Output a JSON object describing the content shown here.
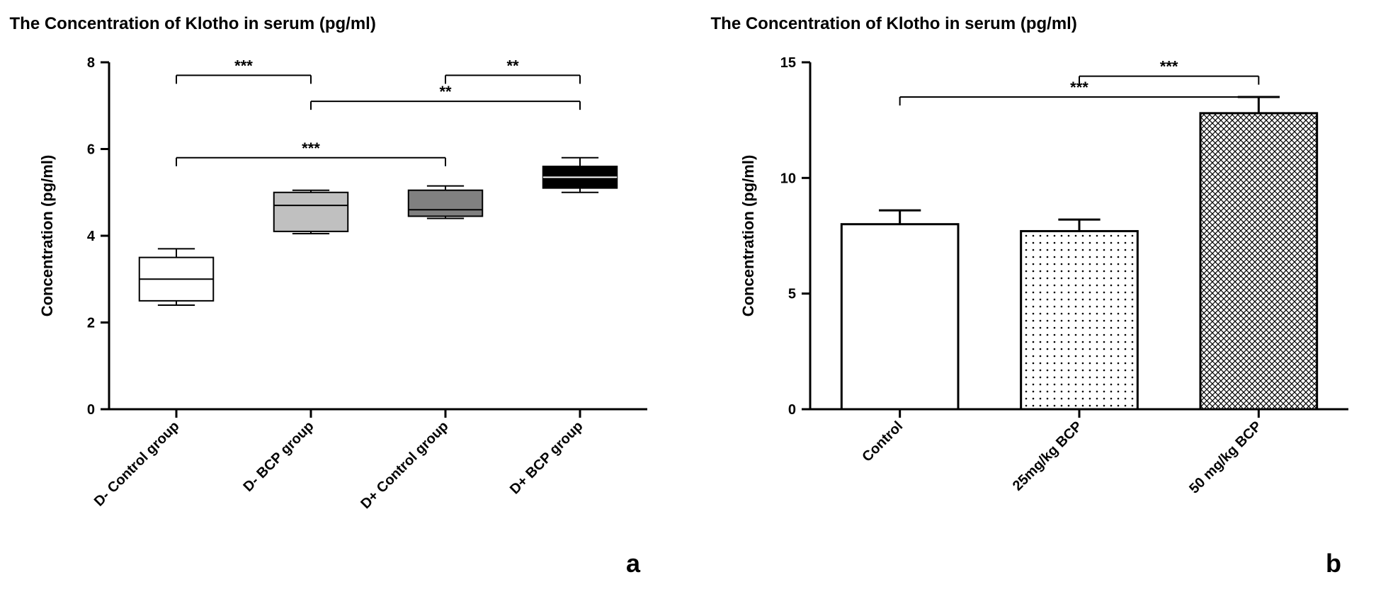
{
  "panel_a": {
    "type": "boxplot",
    "title": "The Concentration of Klotho in serum (pg/ml)",
    "ylabel": "Concentration (pg/ml)",
    "ylim": [
      0,
      8
    ],
    "ytick_step": 2,
    "yticks": [
      0,
      2,
      4,
      6,
      8
    ],
    "categories": [
      "D- Control group",
      "D- BCP group",
      "D+ Control group",
      "D+ BCP group"
    ],
    "boxes": [
      {
        "min": 2.4,
        "q1": 2.5,
        "median": 3.0,
        "q3": 3.5,
        "max": 3.7,
        "fill": "#ffffff"
      },
      {
        "min": 4.05,
        "q1": 4.1,
        "median": 4.7,
        "q3": 5.0,
        "max": 5.05,
        "fill": "#c0c0c0"
      },
      {
        "min": 4.4,
        "q1": 4.45,
        "median": 4.6,
        "q3": 5.05,
        "max": 5.15,
        "fill": "#808080"
      },
      {
        "min": 5.0,
        "q1": 5.1,
        "median": 5.35,
        "q3": 5.6,
        "max": 5.8,
        "fill": "#000000"
      }
    ],
    "significance": [
      {
        "from": 0,
        "to": 1,
        "y": 7.7,
        "label": "***"
      },
      {
        "from": 0,
        "to": 2,
        "y": 5.8,
        "label": "***"
      },
      {
        "from": 1,
        "to": 3,
        "y": 7.1,
        "label": "**"
      },
      {
        "from": 2,
        "to": 3,
        "y": 7.7,
        "label": "**"
      }
    ],
    "panel_label": "a",
    "title_fontsize": 24,
    "label_fontsize": 22,
    "tick_fontsize": 20,
    "sig_fontsize": 22,
    "panel_label_fontsize": 36,
    "axis_color": "#000000",
    "axis_width": 3,
    "box_border_width": 2,
    "background_color": "#ffffff"
  },
  "panel_b": {
    "type": "bar",
    "title": "The Concentration of Klotho in serum (pg/ml)",
    "ylabel": "Concentration (pg/ml)",
    "ylim": [
      0,
      15
    ],
    "ytick_step": 5,
    "yticks": [
      0,
      5,
      10,
      15
    ],
    "categories": [
      "Control",
      "25mg/kg BCP",
      "50 mg/kg BCP"
    ],
    "bars": [
      {
        "value": 8.0,
        "error": 0.6,
        "fill": "#ffffff",
        "pattern": "none"
      },
      {
        "value": 7.7,
        "error": 0.5,
        "fill": "#ffffff",
        "pattern": "dots"
      },
      {
        "value": 12.8,
        "error": 0.7,
        "fill": "#ffffff",
        "pattern": "crosshatch"
      }
    ],
    "significance": [
      {
        "from": 1,
        "to": 2,
        "y": 14.4,
        "label": "***"
      },
      {
        "from": 0,
        "to": 2,
        "y": 13.5,
        "label": "***"
      }
    ],
    "panel_label": "b",
    "title_fontsize": 24,
    "label_fontsize": 22,
    "tick_fontsize": 20,
    "sig_fontsize": 22,
    "panel_label_fontsize": 36,
    "axis_color": "#000000",
    "axis_width": 3,
    "bar_border_width": 3,
    "bar_width": 0.65,
    "background_color": "#ffffff"
  }
}
